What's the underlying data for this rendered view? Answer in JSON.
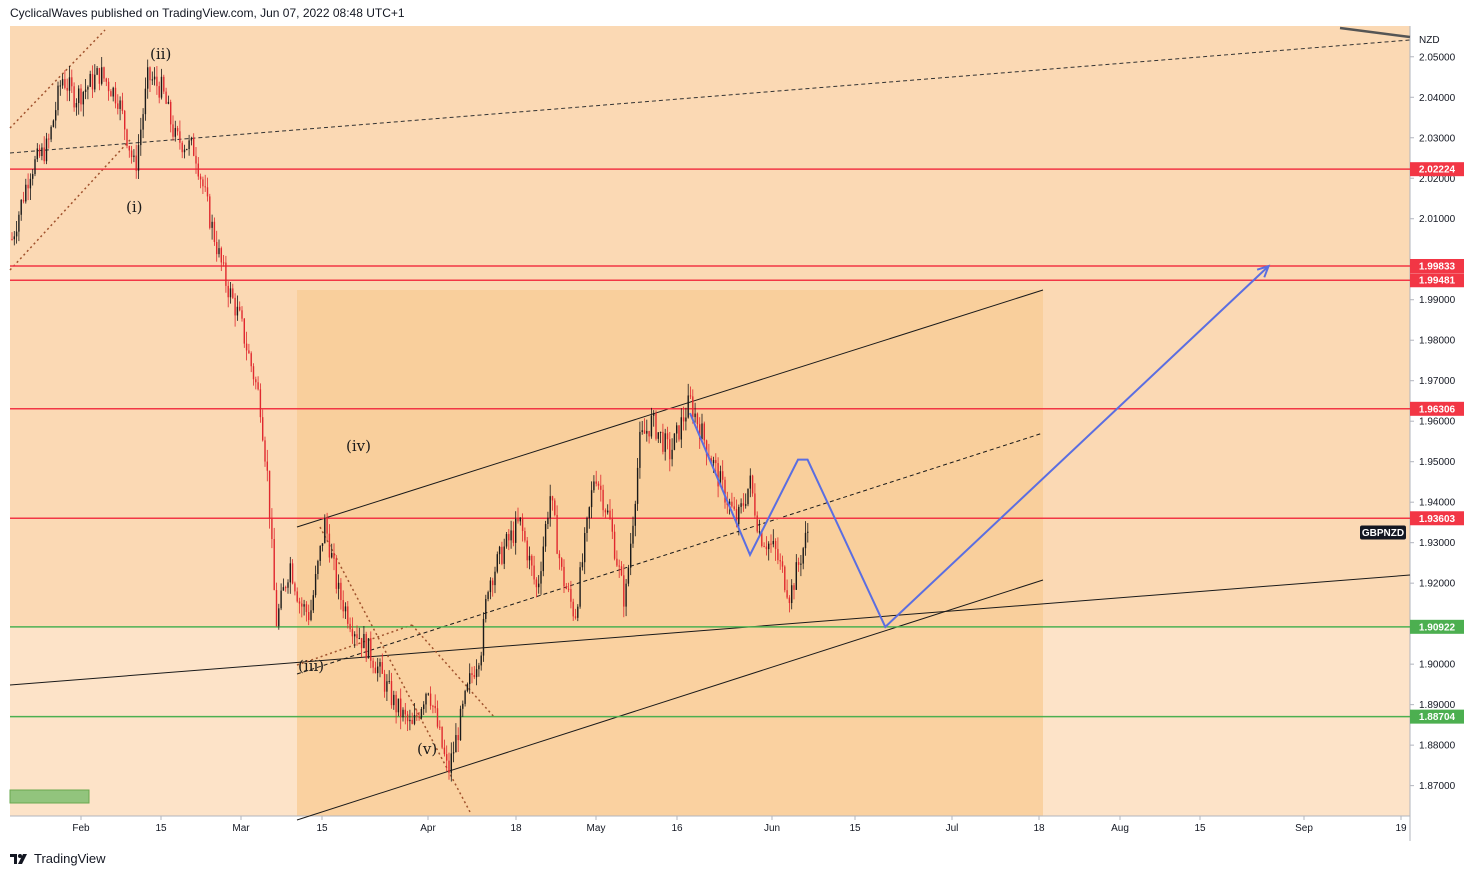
{
  "header": {
    "published": "CyclicalWaves published on TradingView.com, Jun 07, 2022 08:48 UTC+1"
  },
  "footer": {
    "brand": "TradingView"
  },
  "chart_data": {
    "type": "candlestick",
    "symbol": "GBPNZD",
    "currency": "NZD",
    "x_ticks": [
      "Feb",
      "15",
      "Mar",
      "15",
      "Apr",
      "18",
      "May",
      "16",
      "Jun",
      "15",
      "Jul",
      "18",
      "Aug",
      "15",
      "Sep",
      "19"
    ],
    "y_ticks": [
      "2.05000",
      "2.04000",
      "2.03000",
      "2.02000",
      "2.01000",
      "1.99000",
      "1.98000",
      "1.97000",
      "1.96000",
      "1.95000",
      "1.94000",
      "1.93000",
      "1.92000",
      "1.90000",
      "1.89000",
      "1.88000",
      "1.87000"
    ],
    "ylim": [
      1.8625,
      2.0576
    ],
    "horizontal_levels": [
      {
        "value": 2.02224,
        "label": "2.02224",
        "color": "#f23645"
      },
      {
        "value": 1.99833,
        "label": "1.99833",
        "color": "#f23645"
      },
      {
        "value": 1.99481,
        "label": "1.99481",
        "color": "#f23645"
      },
      {
        "value": 1.96306,
        "label": "1.96306",
        "color": "#f23645"
      },
      {
        "value": 1.93603,
        "label": "1.93603",
        "color": "#f23645"
      },
      {
        "value": 1.90922,
        "label": "1.90922",
        "color": "#4caf50"
      },
      {
        "value": 1.88704,
        "label": "1.88704",
        "color": "#4caf50"
      }
    ],
    "price_tag": {
      "label": "GBPNZD",
      "value": 1.9325
    },
    "wave_labels": [
      "(ii)",
      "(i)",
      "(iv)",
      "(iii)",
      "(v)"
    ],
    "projection_path": [
      {
        "date": "Jun 07",
        "price": 1.9505
      },
      {
        "date": "Jun 20",
        "price": 1.9092
      },
      {
        "date": "Aug 27",
        "price": 1.9983
      }
    ],
    "colors": {
      "background": "#fde3c8",
      "bull": "#1a1a1a",
      "bear": "#e0282e",
      "support": "#4caf50",
      "resistance": "#f23645",
      "projection": "#5b6ee1"
    }
  }
}
